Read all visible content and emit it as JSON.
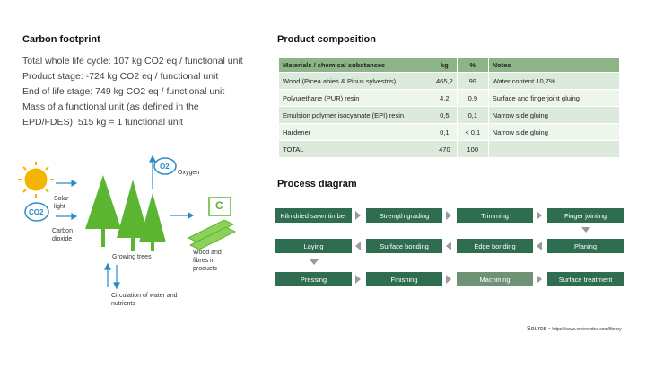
{
  "carbon_footprint": {
    "title": "Carbon footprint",
    "lines": [
      "Total whole life cycle: 107 kg CO2 eq / functional unit",
      "Product stage: -724 kg CO2 eq / functional unit",
      "End of life stage: 749 kg CO2 eq / functional unit",
      "Mass of a functional unit (as defined in the EPD/FDES): 515 kg = 1 functional unit"
    ]
  },
  "illustration": {
    "solar": "Solar light",
    "co2_icon": "CO2",
    "co2": "Carbon dioxide",
    "o2_icon": "O2",
    "oxygen": "Oxygen",
    "trees": "Growing trees",
    "water": "Circulation of water and nutrients",
    "c_icon": "C",
    "wood": "Wood and fibres in products"
  },
  "product_composition": {
    "title": "Product composition",
    "header": [
      "Materials / chemical substances",
      "kg",
      "%",
      "Notes"
    ],
    "rows": [
      [
        "Wood (Picea abies & Pinus sylvestris)",
        "465,2",
        "99",
        "Water content 10,7%"
      ],
      [
        "Polyurethane (PUR) resin",
        "4,2",
        "0,9",
        "Surface and fingerjoint gluing"
      ],
      [
        "Emulsion polymer isocyanate (EPI) resin",
        "0,5",
        "0,1",
        "Narrow side gluing"
      ],
      [
        "Hardener",
        "0,1",
        "< 0,1",
        "Narrow side gluing"
      ],
      [
        "TOTAL",
        "470",
        "100",
        null
      ]
    ]
  },
  "process_diagram": {
    "title": "Process diagram",
    "rows": [
      [
        "Kiln dried sawn timber",
        "Strength grading",
        "Trimming",
        "Finger jointing"
      ],
      [
        "Laying",
        "Surface bonding",
        "Edge bonding",
        "Planing"
      ],
      [
        "Pressing",
        "Finishing",
        "Machining",
        "Surface treatment"
      ]
    ]
  },
  "source": {
    "label": "Source -",
    "url": "https://www.environdec.com/library"
  }
}
